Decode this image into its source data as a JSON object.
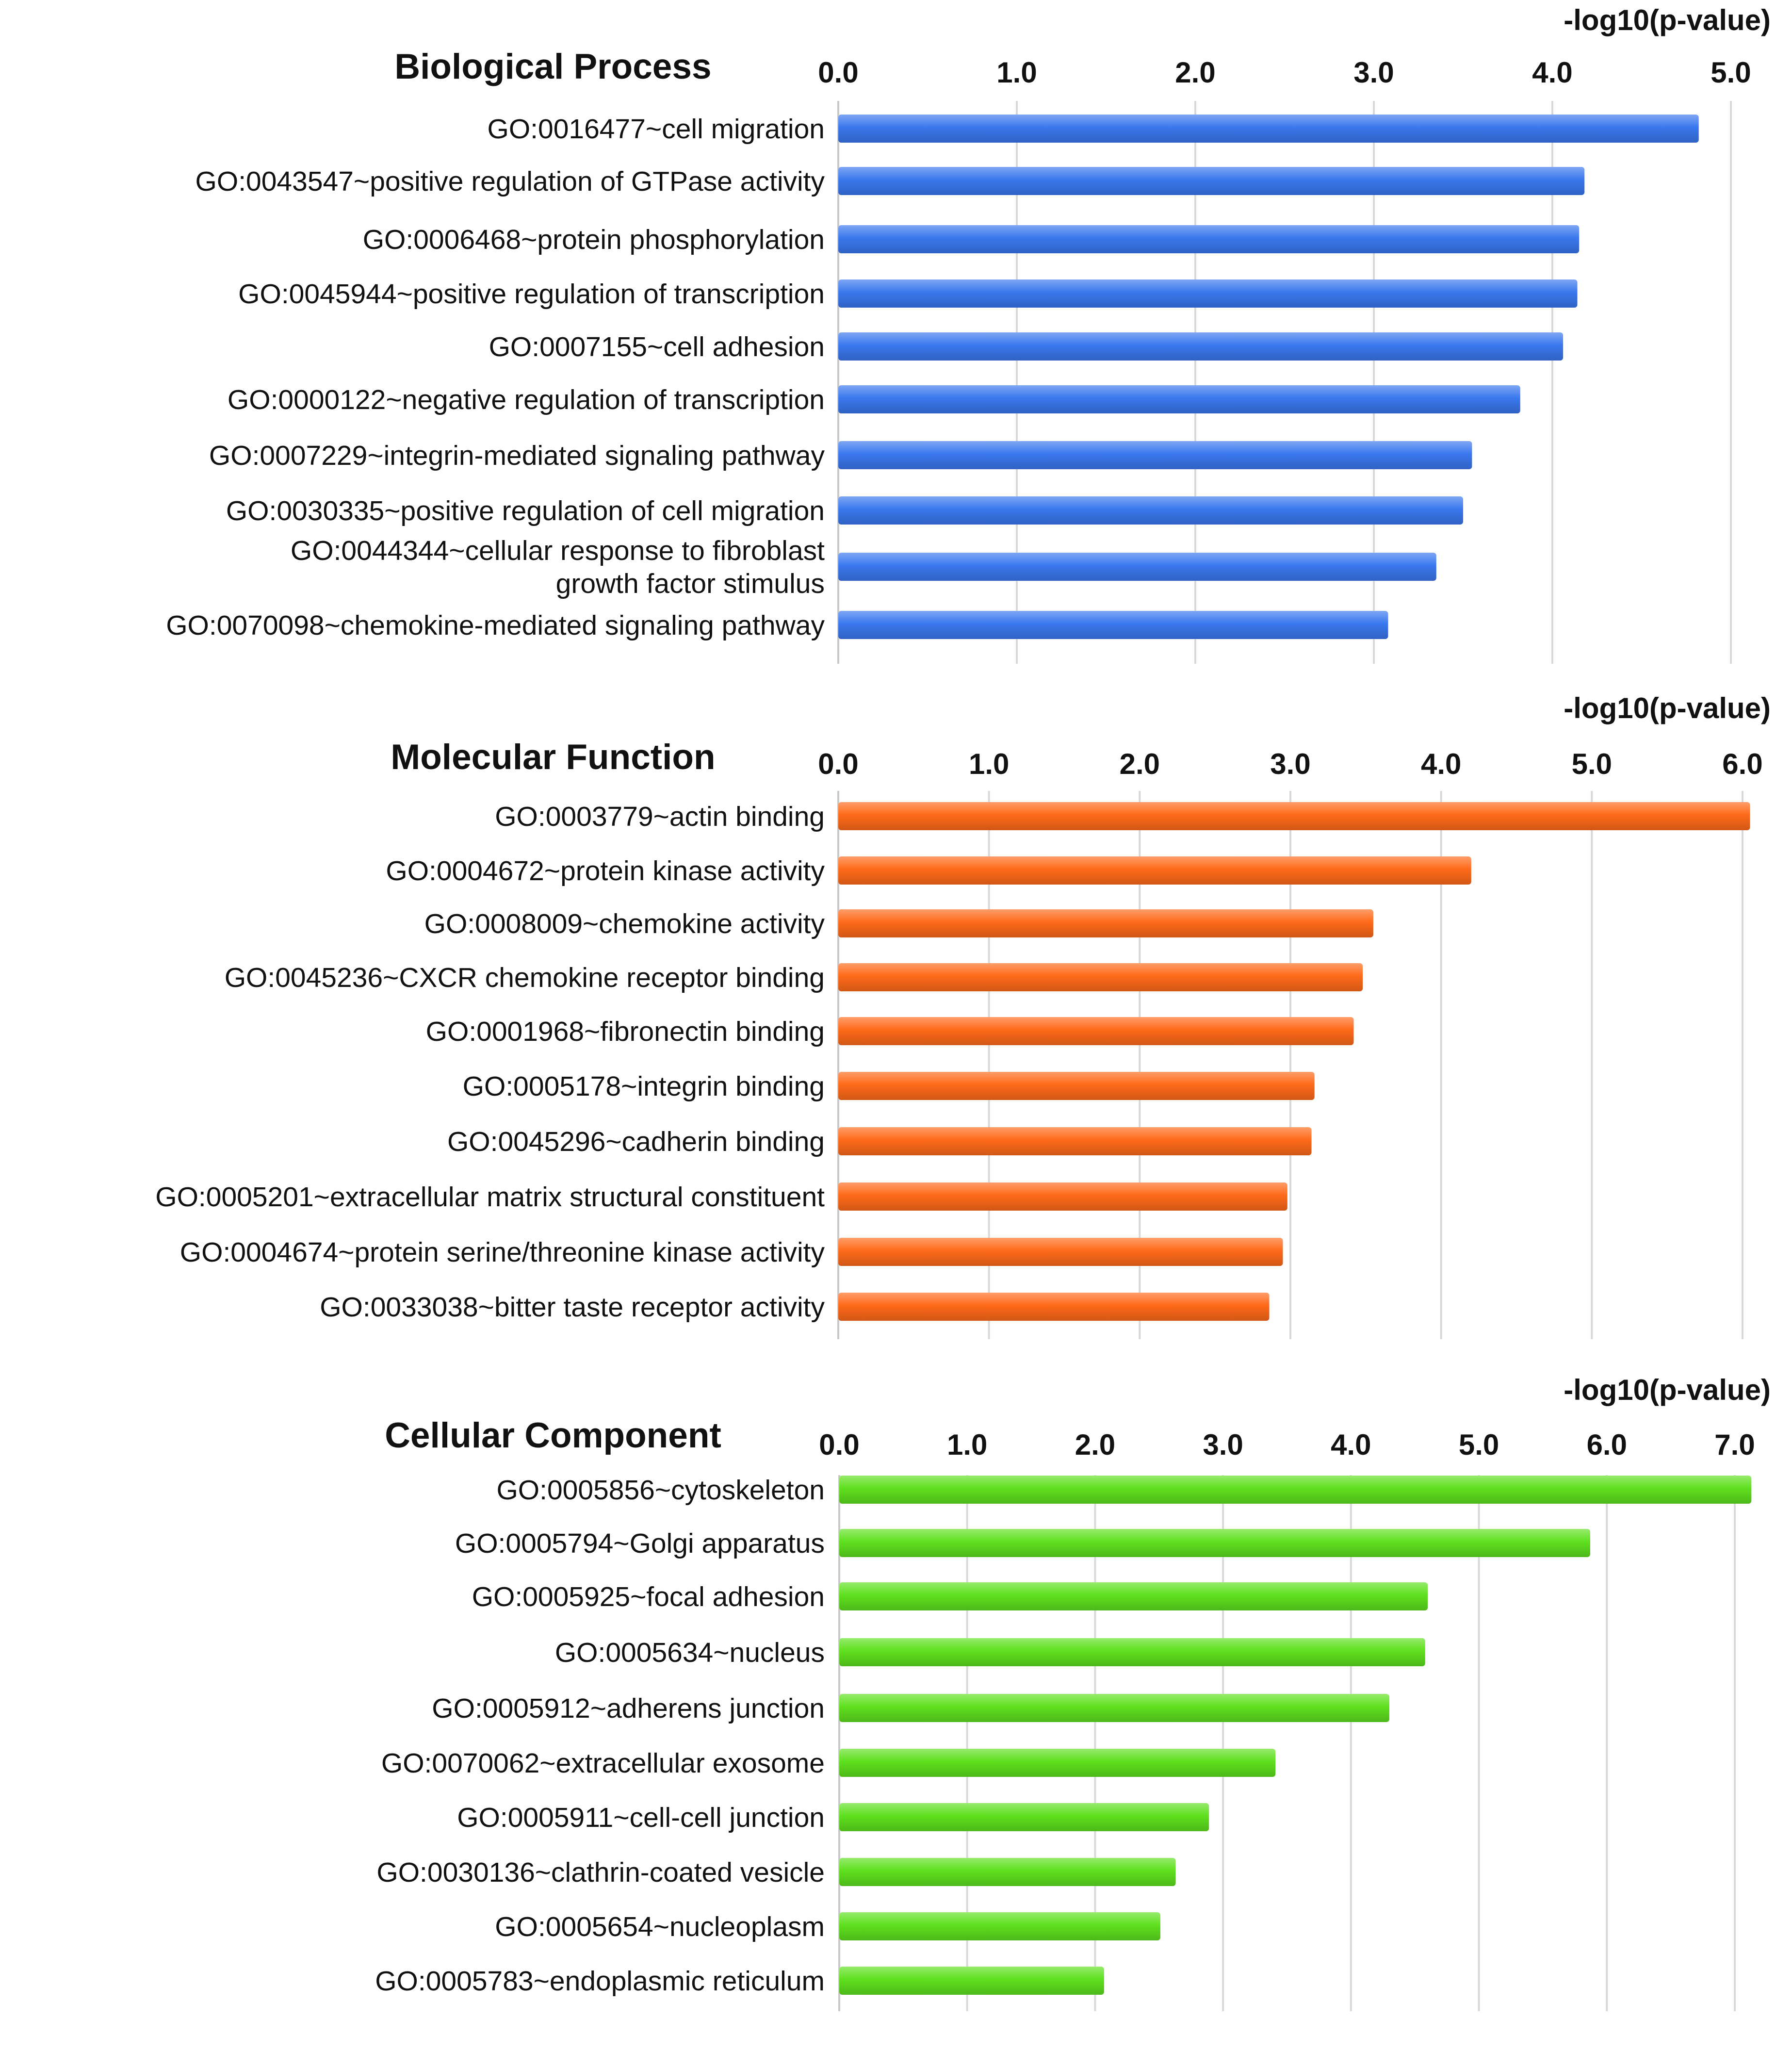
{
  "chart_data": [
    {
      "type": "bar",
      "orientation": "horizontal",
      "title": "Biological Process",
      "xlabel": "-log10(p-value)",
      "xlim": [
        0,
        5.0
      ],
      "ticks": [
        "0.0",
        "1.0",
        "2.0",
        "3.0",
        "4.0",
        "5.0"
      ],
      "color": "#3a78ee",
      "categories": [
        [
          "GO:0016477~cell migration"
        ],
        [
          "GO:0043547~positive regulation of GTPase activity"
        ],
        [
          "GO:0006468~protein phosphorylation"
        ],
        [
          "GO:0045944~positive regulation of transcription"
        ],
        [
          "GO:0007155~cell adhesion"
        ],
        [
          "GO:0000122~negative regulation of transcription"
        ],
        [
          "GO:0007229~integrin-mediated signaling pathway"
        ],
        [
          "GO:0030335~positive regulation of cell migration"
        ],
        [
          "GO:0044344~cellular response to fibroblast",
          "growth factor stimulus"
        ],
        [
          "GO:0070098~chemokine-mediated signaling pathway"
        ]
      ],
      "values": [
        4.82,
        4.18,
        4.15,
        4.14,
        4.06,
        3.82,
        3.55,
        3.5,
        3.35,
        3.08
      ]
    },
    {
      "type": "bar",
      "orientation": "horizontal",
      "title": "Molecular Function",
      "xlabel": "-log10(p-value)",
      "xlim": [
        0,
        6.0
      ],
      "ticks": [
        "0.0",
        "1.0",
        "2.0",
        "3.0",
        "4.0",
        "5.0",
        "6.0"
      ],
      "color": "#ff6a1a",
      "categories": [
        [
          "GO:0003779~actin binding"
        ],
        [
          "GO:0004672~protein kinase activity"
        ],
        [
          "GO:0008009~chemokine activity"
        ],
        [
          "GO:0045236~CXCR chemokine receptor binding"
        ],
        [
          "GO:0001968~fibronectin binding"
        ],
        [
          "GO:0005178~integrin binding"
        ],
        [
          "GO:0045296~cadherin binding"
        ],
        [
          "GO:0005201~extracellular matrix structural constituent"
        ],
        [
          "GO:0004674~protein serine/threonine kinase activity"
        ],
        [
          "GO:0033038~bitter taste receptor activity"
        ]
      ],
      "values": [
        6.05,
        4.2,
        3.55,
        3.48,
        3.42,
        3.16,
        3.14,
        2.98,
        2.95,
        2.86
      ]
    },
    {
      "type": "bar",
      "orientation": "horizontal",
      "title": "Cellular Component",
      "xlabel": "-log10(p-value)",
      "xlim": [
        0,
        7.0
      ],
      "ticks": [
        "0.0",
        "1.0",
        "2.0",
        "3.0",
        "4.0",
        "5.0",
        "6.0",
        "7.0"
      ],
      "color": "#5fe01e",
      "categories": [
        [
          "GO:0005856~cytoskeleton"
        ],
        [
          "GO:0005794~Golgi apparatus"
        ],
        [
          "GO:0005925~focal adhesion"
        ],
        [
          "GO:0005634~nucleus"
        ],
        [
          "GO:0005912~adherens junction"
        ],
        [
          "GO:0070062~extracellular exosome"
        ],
        [
          "GO:0005911~cell-cell junction"
        ],
        [
          "GO:0030136~clathrin-coated vesicle"
        ],
        [
          "GO:0005654~nucleoplasm"
        ],
        [
          "GO:0005783~endoplasmic reticulum"
        ]
      ],
      "values": [
        7.13,
        5.87,
        4.6,
        4.58,
        4.3,
        3.41,
        2.89,
        2.63,
        2.51,
        2.07
      ]
    }
  ]
}
